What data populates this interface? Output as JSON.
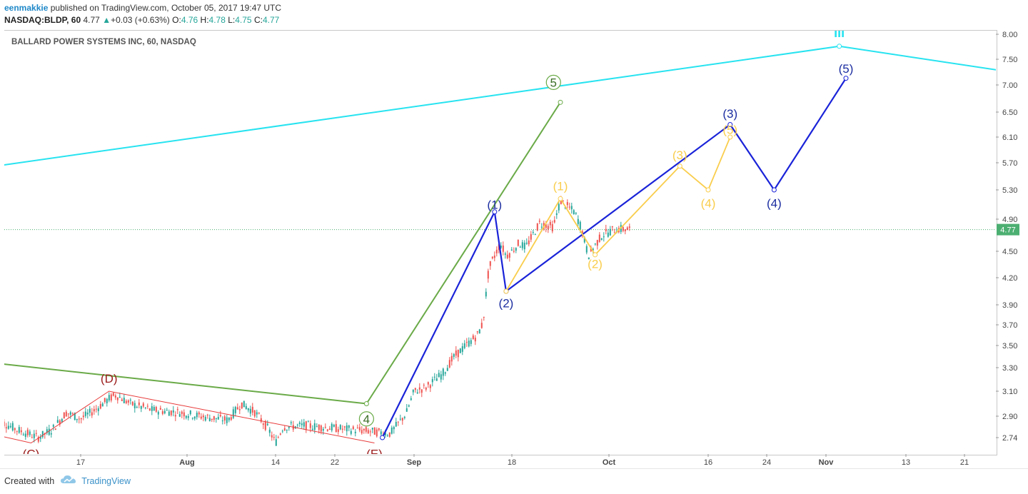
{
  "header": {
    "author": "eenmakkie",
    "published_text": " published on TradingView.com, October 05, 2017 19:47 UTC",
    "symbol": "NASDAQ:BLDP, 60",
    "last": "4.77",
    "change": "+0.03 (+0.63%)",
    "open_label": "O:",
    "open": "4.76",
    "high_label": "H:",
    "high": "4.78",
    "low_label": "L:",
    "low": "4.75",
    "close_label": "C:",
    "close": "4.77"
  },
  "footer": {
    "created_with": "Created with",
    "brand": "TradingView"
  },
  "colors": {
    "up": "#26a69a",
    "down": "#ef5350",
    "cyan": "#27e3f0",
    "green": "#6aaa48",
    "blue": "#1a23d8",
    "yellow": "#f9cd4c",
    "red": "#e83a3a",
    "navy": "#1c2ea0",
    "dark_red": "#9b1b1b",
    "last_price": "#4caf72"
  },
  "chart_data": {
    "type": "line",
    "title": "BALLARD POWER SYSTEMS INC, 60, NASDAQ",
    "y_ticks": [
      "8.00",
      "7.50",
      "7.00",
      "6.50",
      "6.10",
      "5.70",
      "5.30",
      "4.90",
      "4.50",
      "4.20",
      "3.90",
      "3.70",
      "3.50",
      "3.30",
      "3.10",
      "2.90",
      "2.74"
    ],
    "x_ticks": [
      "17",
      "Aug",
      "14",
      "22",
      "Sep",
      "18",
      "Oct",
      "16",
      "24",
      "Nov",
      "13",
      "21"
    ],
    "x_tick_dates": [
      "2017-07-17",
      "2017-08-01",
      "2017-08-14",
      "2017-08-22",
      "2017-09-01",
      "2017-09-18",
      "2017-10-02",
      "2017-10-16",
      "2017-10-24",
      "2017-11-01",
      "2017-11-13",
      "2017-11-21"
    ],
    "last_price_label": "4.77",
    "last_price": 4.77,
    "price_path": [
      [
        "2017-07-05",
        2.88
      ],
      [
        "2017-07-08",
        2.8
      ],
      [
        "2017-07-11",
        2.74
      ],
      [
        "2017-07-13",
        2.8
      ],
      [
        "2017-07-15",
        2.93
      ],
      [
        "2017-07-17",
        2.88
      ],
      [
        "2017-07-19",
        2.95
      ],
      [
        "2017-07-21",
        3.04
      ],
      [
        "2017-07-22",
        3.07
      ],
      [
        "2017-07-24",
        3.0
      ],
      [
        "2017-07-27",
        2.95
      ],
      [
        "2017-07-31",
        2.93
      ],
      [
        "2017-08-03",
        2.9
      ],
      [
        "2017-08-07",
        2.87
      ],
      [
        "2017-08-09",
        3.0
      ],
      [
        "2017-08-11",
        2.93
      ],
      [
        "2017-08-13",
        2.8
      ],
      [
        "2017-08-14",
        2.7
      ],
      [
        "2017-08-15",
        2.82
      ],
      [
        "2017-08-18",
        2.83
      ],
      [
        "2017-08-22",
        2.81
      ],
      [
        "2017-08-26",
        2.79
      ],
      [
        "2017-08-29",
        2.77
      ],
      [
        "2017-08-31",
        2.92
      ],
      [
        "2017-09-01",
        3.1
      ],
      [
        "2017-09-03",
        3.13
      ],
      [
        "2017-09-06",
        3.25
      ],
      [
        "2017-09-08",
        3.4
      ],
      [
        "2017-09-10",
        3.5
      ],
      [
        "2017-09-12",
        3.6
      ],
      [
        "2017-09-13",
        3.72
      ],
      [
        "2017-09-14",
        4.3
      ],
      [
        "2017-09-15",
        4.45
      ],
      [
        "2017-09-16",
        4.6
      ],
      [
        "2017-09-17",
        4.45
      ],
      [
        "2017-09-18",
        4.5
      ],
      [
        "2017-09-19",
        4.6
      ],
      [
        "2017-09-20",
        4.55
      ],
      [
        "2017-09-22",
        4.85
      ],
      [
        "2017-09-24",
        4.8
      ],
      [
        "2017-09-25",
        5.15
      ],
      [
        "2017-09-27",
        5.0
      ],
      [
        "2017-09-28",
        4.8
      ],
      [
        "2017-09-29",
        4.45
      ],
      [
        "2017-10-01",
        4.7
      ],
      [
        "2017-10-03",
        4.78
      ],
      [
        "2017-10-05",
        4.77
      ]
    ],
    "wave_lines": [
      {
        "style": "cyan",
        "points": [
          [
            "2017-07-05",
            5.65
          ],
          [
            "2017-11-03",
            7.76
          ],
          [
            "2017-11-26",
            7.28
          ]
        ]
      },
      {
        "style": "green",
        "points": [
          [
            "2017-07-05",
            3.34
          ],
          [
            "2017-08-26",
            3.0
          ],
          [
            "2017-09-25",
            6.68
          ]
        ]
      },
      {
        "style": "blue",
        "points": [
          [
            "2017-08-28",
            2.74
          ],
          [
            "2017-09-15",
            5.0
          ],
          [
            "2017-09-17",
            4.05
          ],
          [
            "2017-10-19",
            6.3
          ],
          [
            "2017-10-25",
            5.3
          ],
          [
            "2017-11-04",
            7.13
          ]
        ]
      },
      {
        "style": "yellow",
        "points": [
          [
            "2017-09-17",
            4.05
          ],
          [
            "2017-09-25",
            5.18
          ],
          [
            "2017-09-30",
            4.46
          ],
          [
            "2017-10-12",
            5.65
          ],
          [
            "2017-10-16",
            5.3
          ],
          [
            "2017-10-19",
            6.1
          ]
        ]
      },
      {
        "style": "red",
        "points": [
          [
            "2017-07-05",
            2.76
          ],
          [
            "2017-07-10",
            2.7
          ],
          [
            "2017-07-21",
            3.1
          ],
          [
            "2017-08-27",
            2.7
          ]
        ]
      }
    ],
    "wave_labels": [
      {
        "text": "(D)",
        "date": "2017-07-21",
        "price": 3.21,
        "style": "dark_red"
      },
      {
        "text": "(C)",
        "date": "2017-07-10",
        "price": 2.62,
        "style": "dark_red"
      },
      {
        "text": "(E)",
        "date": "2017-08-27",
        "price": 2.62,
        "style": "dark_red"
      },
      {
        "text": "4",
        "date": "2017-08-26",
        "price": 2.88,
        "style": "green",
        "circled": true
      },
      {
        "text": "5",
        "date": "2017-09-24",
        "price": 7.05,
        "style": "green",
        "circled": true
      },
      {
        "text": "(1)",
        "date": "2017-09-15",
        "price": 5.1,
        "style": "navy"
      },
      {
        "text": "(2)",
        "date": "2017-09-17",
        "price": 3.92,
        "style": "navy"
      },
      {
        "text": "(3)",
        "date": "2017-10-19",
        "price": 6.48,
        "style": "navy"
      },
      {
        "text": "(4)",
        "date": "2017-10-25",
        "price": 5.12,
        "style": "navy"
      },
      {
        "text": "(5)",
        "date": "2017-11-04",
        "price": 7.32,
        "style": "navy"
      },
      {
        "text": "(1)",
        "date": "2017-09-25",
        "price": 5.36,
        "style": "yellow"
      },
      {
        "text": "(2)",
        "date": "2017-09-30",
        "price": 4.36,
        "style": "yellow"
      },
      {
        "text": "(3)",
        "date": "2017-10-12",
        "price": 5.82,
        "style": "yellow"
      },
      {
        "text": "(4)",
        "date": "2017-10-16",
        "price": 5.12,
        "style": "yellow"
      },
      {
        "text": "(5)",
        "date": "2017-10-19",
        "price": 6.22,
        "style": "yellow"
      },
      {
        "text": "III",
        "date": "2017-11-03",
        "price": 8.0,
        "style": "cyan"
      }
    ]
  }
}
